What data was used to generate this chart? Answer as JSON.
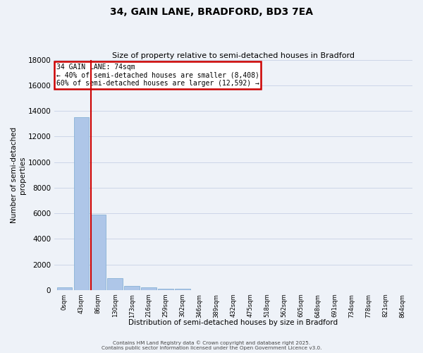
{
  "title": "34, GAIN LANE, BRADFORD, BD3 7EA",
  "subtitle": "Size of property relative to semi-detached houses in Bradford",
  "xlabel": "Distribution of semi-detached houses by size in Bradford",
  "ylabel": "Number of semi-detached\nproperties",
  "annotation_title": "34 GAIN LANE: 74sqm",
  "annotation_line1": "← 40% of semi-detached houses are smaller (8,408)",
  "annotation_line2": "60% of semi-detached houses are larger (12,592) →",
  "footer_line1": "Contains HM Land Registry data © Crown copyright and database right 2025.",
  "footer_line2": "Contains public sector information licensed under the Open Government Licence v3.0.",
  "bins": [
    "0sqm",
    "43sqm",
    "86sqm",
    "130sqm",
    "173sqm",
    "216sqm",
    "259sqm",
    "302sqm",
    "346sqm",
    "389sqm",
    "432sqm",
    "475sqm",
    "518sqm",
    "562sqm",
    "605sqm",
    "648sqm",
    "691sqm",
    "734sqm",
    "778sqm",
    "821sqm",
    "864sqm"
  ],
  "values": [
    200,
    13500,
    5900,
    950,
    320,
    220,
    120,
    80,
    0,
    0,
    0,
    0,
    0,
    0,
    0,
    0,
    0,
    0,
    0,
    0
  ],
  "red_line_x": 2,
  "bar_color": "#aec6e8",
  "bar_edge_color": "#7aaad0",
  "highlight_bar_edge_color": "#cc0000",
  "annotation_box_edge_color": "#cc0000",
  "annotation_box_face_color": "#ffffff",
  "ylim": [
    0,
    18000
  ],
  "yticks": [
    0,
    2000,
    4000,
    6000,
    8000,
    10000,
    12000,
    14000,
    16000,
    18000
  ],
  "grid_color": "#ccd6e8",
  "bg_color": "#eef2f8",
  "title_fontsize": 10,
  "subtitle_fontsize": 8
}
